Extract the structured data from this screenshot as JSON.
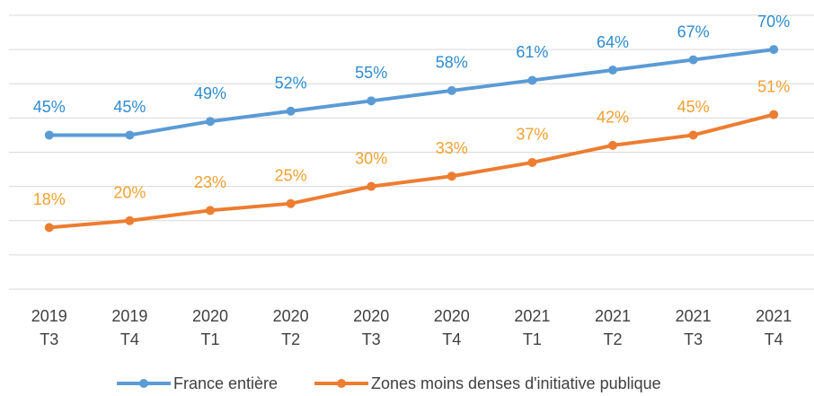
{
  "chart_data": {
    "type": "line",
    "categories": [
      "2019 T3",
      "2019 T4",
      "2020 T1",
      "2020 T2",
      "2020 T3",
      "2020 T4",
      "2021 T1",
      "2021 T2",
      "2021 T3",
      "2021 T4"
    ],
    "series": [
      {
        "name": "France entière",
        "color": "#5b9bd5",
        "label_color": "#2e8bd0",
        "values": [
          45,
          45,
          49,
          52,
          55,
          58,
          61,
          64,
          67,
          70
        ],
        "value_labels": [
          "45%",
          "45%",
          "49%",
          "52%",
          "55%",
          "58%",
          "61%",
          "64%",
          "67%",
          "70%"
        ]
      },
      {
        "name": "Zones moins denses d'initiative publique",
        "color": "#ed7d31",
        "label_color": "#f0a030",
        "values": [
          18,
          20,
          23,
          25,
          30,
          33,
          37,
          42,
          45,
          51
        ],
        "value_labels": [
          "18%",
          "20%",
          "23%",
          "25%",
          "30%",
          "33%",
          "37%",
          "42%",
          "45%",
          "51%"
        ]
      }
    ],
    "ylim": [
      0,
      80
    ],
    "yticks": [
      0,
      10,
      20,
      30,
      40,
      50,
      60,
      70,
      80
    ],
    "grid": true,
    "legend": "bottom"
  }
}
